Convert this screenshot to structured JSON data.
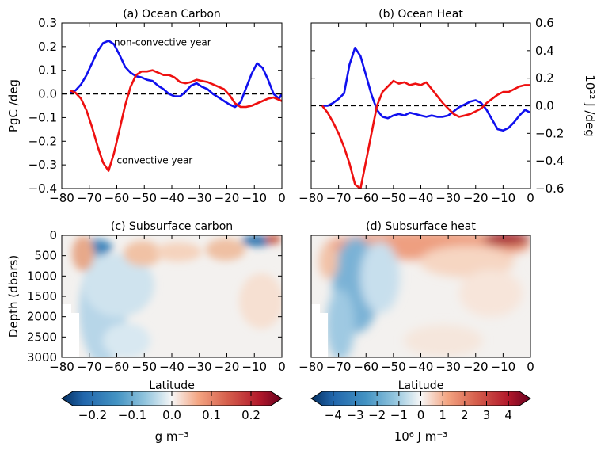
{
  "chart_data": [
    {
      "type": "line",
      "title": "(a) Ocean Carbon",
      "xlabel": "",
      "ylabel": "PgC /deg",
      "xlim": [
        -80,
        0
      ],
      "ylim": [
        -0.4,
        0.3
      ],
      "xticks": [
        "-80",
        "-70",
        "-60",
        "-50",
        "-40",
        "-30",
        "-20",
        "-10",
        "0"
      ],
      "yticks": [
        "-0.4",
        "-0.3",
        "-0.2",
        "-0.1",
        "0.0",
        "0.1",
        "0.2",
        "0.3"
      ],
      "y_axis_side": "left",
      "zero_line": "dashed",
      "annotations": [
        {
          "text": "non-convective year",
          "x": -61,
          "y": 0.205,
          "color": "#1010e0"
        },
        {
          "text": "convective year",
          "x": -60,
          "y": -0.295,
          "color": "#e01010"
        }
      ],
      "series": [
        {
          "name": "non-convective year",
          "color": "#1010ee",
          "x": [
            -77,
            -75,
            -73,
            -71,
            -69,
            -67,
            -65,
            -63,
            -61,
            -59,
            -57,
            -55,
            -53,
            -51,
            -49,
            -47,
            -45,
            -43,
            -41,
            -39,
            -37,
            -35,
            -33,
            -31,
            -29,
            -27,
            -25,
            -23,
            -21,
            -19,
            -17,
            -15,
            -13,
            -11,
            -9,
            -7,
            -5,
            -3,
            -1,
            0
          ],
          "y": [
            0.005,
            0.015,
            0.04,
            0.08,
            0.13,
            0.18,
            0.215,
            0.225,
            0.21,
            0.165,
            0.115,
            0.09,
            0.075,
            0.07,
            0.06,
            0.055,
            0.035,
            0.02,
            0.0,
            -0.01,
            -0.01,
            0.01,
            0.035,
            0.045,
            0.03,
            0.02,
            0.0,
            -0.015,
            -0.03,
            -0.045,
            -0.055,
            -0.035,
            0.025,
            0.085,
            0.13,
            0.11,
            0.06,
            0.0,
            -0.02,
            0.0
          ]
        },
        {
          "name": "convective year",
          "color": "#ee1010",
          "x": [
            -77,
            -75,
            -73,
            -71,
            -69,
            -67,
            -65,
            -63,
            -61,
            -59,
            -57,
            -55,
            -53,
            -51,
            -49,
            -47,
            -45,
            -43,
            -41,
            -39,
            -37,
            -35,
            -33,
            -31,
            -29,
            -27,
            -25,
            -23,
            -21,
            -19,
            -17,
            -15,
            -13,
            -11,
            -9,
            -7,
            -5,
            -3,
            -1,
            0
          ],
          "y": [
            0.015,
            0.005,
            -0.02,
            -0.07,
            -0.14,
            -0.22,
            -0.29,
            -0.325,
            -0.25,
            -0.15,
            -0.05,
            0.03,
            0.08,
            0.095,
            0.095,
            0.1,
            0.09,
            0.08,
            0.08,
            0.07,
            0.05,
            0.045,
            0.05,
            0.06,
            0.055,
            0.05,
            0.04,
            0.03,
            0.02,
            -0.005,
            -0.04,
            -0.055,
            -0.055,
            -0.05,
            -0.04,
            -0.03,
            -0.02,
            -0.015,
            -0.025,
            -0.03
          ]
        }
      ]
    },
    {
      "type": "line",
      "title": "(b) Ocean Heat",
      "xlabel": "",
      "ylabel": "10²² J /deg",
      "xlim": [
        -80,
        0
      ],
      "ylim": [
        -0.6,
        0.6
      ],
      "xticks": [
        "-80",
        "-70",
        "-60",
        "-50",
        "-40",
        "-30",
        "-20",
        "-10",
        "0"
      ],
      "yticks": [
        "-0.6",
        "-0.4",
        "-0.2",
        "0.0",
        "0.2",
        "0.4",
        "0.6"
      ],
      "y_axis_side": "right",
      "zero_line": "dashed",
      "series": [
        {
          "name": "",
          "color": "#1010ee",
          "x": [
            -76,
            -74,
            -72,
            -70,
            -68,
            -66,
            -64,
            -62,
            -60,
            -58,
            -56,
            -54,
            -52,
            -50,
            -48,
            -46,
            -44,
            -42,
            -40,
            -38,
            -36,
            -34,
            -32,
            -30,
            -28,
            -26,
            -24,
            -22,
            -20,
            -18,
            -16,
            -14,
            -12,
            -10,
            -8,
            -6,
            -4,
            -2,
            0
          ],
          "y": [
            0.0,
            0.0,
            0.02,
            0.05,
            0.09,
            0.3,
            0.42,
            0.36,
            0.22,
            0.08,
            -0.03,
            -0.08,
            -0.09,
            -0.07,
            -0.06,
            -0.07,
            -0.05,
            -0.06,
            -0.07,
            -0.08,
            -0.07,
            -0.08,
            -0.08,
            -0.07,
            -0.04,
            -0.01,
            0.01,
            0.03,
            0.04,
            0.02,
            -0.03,
            -0.1,
            -0.17,
            -0.18,
            -0.16,
            -0.12,
            -0.07,
            -0.03,
            -0.05
          ]
        },
        {
          "name": "",
          "color": "#ee1010",
          "x": [
            -76,
            -74,
            -72,
            -70,
            -68,
            -66,
            -64,
            -62,
            -60,
            -58,
            -56,
            -54,
            -52,
            -50,
            -48,
            -46,
            -44,
            -42,
            -40,
            -38,
            -36,
            -34,
            -32,
            -30,
            -28,
            -26,
            -24,
            -22,
            -20,
            -18,
            -16,
            -14,
            -12,
            -10,
            -8,
            -6,
            -4,
            -2,
            0
          ],
          "y": [
            0.0,
            -0.05,
            -0.12,
            -0.2,
            -0.3,
            -0.42,
            -0.57,
            -0.6,
            -0.4,
            -0.2,
            0.0,
            0.1,
            0.14,
            0.18,
            0.16,
            0.17,
            0.15,
            0.16,
            0.15,
            0.17,
            0.12,
            0.07,
            0.02,
            -0.02,
            -0.06,
            -0.08,
            -0.07,
            -0.06,
            -0.04,
            -0.02,
            0.02,
            0.05,
            0.08,
            0.1,
            0.1,
            0.12,
            0.14,
            0.15,
            0.15
          ]
        }
      ]
    },
    {
      "type": "heatmap",
      "title": "(c) Subsurface carbon",
      "xlabel": "Latitude",
      "ylabel": "Depth (dbars)",
      "xlim": [
        -80,
        0
      ],
      "ylim": [
        3000,
        0
      ],
      "xticks": [
        "-80",
        "-70",
        "-60",
        "-50",
        "-40",
        "-30",
        "-20",
        "-10",
        "0"
      ],
      "yticks": [
        "0",
        "500",
        "1000",
        "1500",
        "2000",
        "2500",
        "3000"
      ],
      "colorbar": {
        "label": "g m⁻³",
        "ticks": [
          "-0.2",
          "-0.1",
          "0.0",
          "0.1",
          "0.2"
        ],
        "range": [
          -0.25,
          0.25
        ],
        "colormap": "RdBu_r"
      }
    },
    {
      "type": "heatmap",
      "title": "(d) Subsurface heat",
      "xlabel": "Latitude",
      "ylabel": "",
      "xlim": [
        -80,
        0
      ],
      "ylim": [
        3000,
        0
      ],
      "xticks": [
        "-80",
        "-70",
        "-60",
        "-50",
        "-40",
        "-30",
        "-20",
        "-10",
        "0"
      ],
      "yticks": [],
      "colorbar": {
        "label": "10⁶ J m⁻³",
        "ticks": [
          "-4",
          "-3",
          "-2",
          "-1",
          "0",
          "1",
          "2",
          "3",
          "4"
        ],
        "range": [
          -4.5,
          4.5
        ],
        "colormap": "RdBu_r"
      }
    }
  ]
}
